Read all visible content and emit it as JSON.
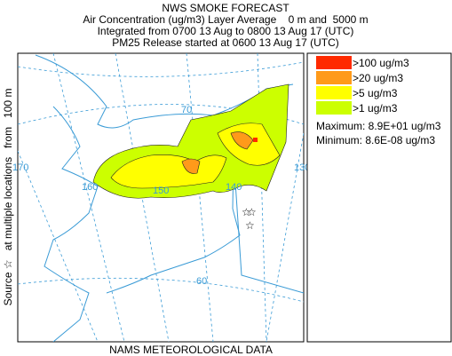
{
  "header": {
    "title": "NWS SMOKE FORECAST",
    "line1": "Air Concentration (ug/m3) Layer Average    0 m and  5000 m",
    "line2": "Integrated from 0700 13 Aug to 0800 13 Aug 17 (UTC)",
    "line3": "PM25 Release started at 0600 13 Aug 17 (UTC)"
  },
  "side_label": "Source ☆   at multiple locations   from   100 m",
  "footer": "NAMS METEOROLOGICAL DATA",
  "legend": {
    "items": [
      {
        "label": ">100 ug/m3",
        "color": "#ff2a00"
      },
      {
        "label": ">20 ug/m3",
        "color": "#ff9a1a"
      },
      {
        "label": ">5 ug/m3",
        "color": "#ffff00"
      },
      {
        "label": ">1 ug/m3",
        "color": "#ccff00"
      }
    ],
    "maximum": "Maximum: 8.9E+01 ug/m3",
    "minimum": "Minimum: 8.6E-08 ug/m3"
  },
  "map": {
    "labels": [
      "170",
      "160",
      "150",
      "140",
      "130",
      "70",
      "60"
    ]
  }
}
